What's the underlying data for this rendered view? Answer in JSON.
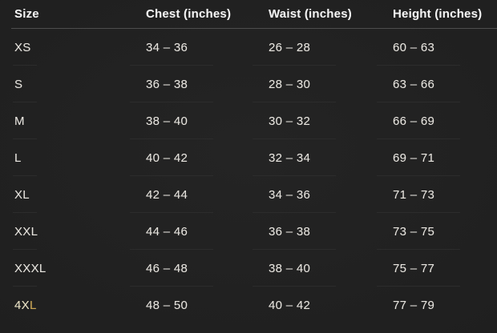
{
  "chart_data": {
    "type": "table",
    "columns": [
      "Size",
      "Chest (inches)",
      "Waist (inches)",
      "Height (inches)"
    ],
    "rows": [
      {
        "size": "XS",
        "chest": "34 – 36",
        "waist": "26 – 28",
        "height": "60 – 63"
      },
      {
        "size": "S",
        "chest": "36 – 38",
        "waist": "28 – 30",
        "height": "63 – 66"
      },
      {
        "size": "M",
        "chest": "38 – 40",
        "waist": "30 – 32",
        "height": "66 – 69"
      },
      {
        "size": "L",
        "chest": "40 – 42",
        "waist": "32 – 34",
        "height": "69 – 71"
      },
      {
        "size": "XL",
        "chest": "42 – 44",
        "waist": "34 – 36",
        "height": "71 – 73"
      },
      {
        "size": "XXL",
        "chest": "44 – 46",
        "waist": "36 – 38",
        "height": "73 – 75"
      },
      {
        "size": "XXXL",
        "chest": "46 – 48",
        "waist": "38 – 40",
        "height": "75 – 77"
      },
      {
        "size": "4XL",
        "chest": "48 – 50",
        "waist": "40 – 42",
        "height": "77 – 79",
        "size_parts": [
          {
            "text": "4X",
            "color": "#ece4c6"
          },
          {
            "text": "L",
            "color": "#cfa953"
          }
        ]
      }
    ],
    "layout": {
      "grid": "faint-row-separators",
      "legend": "none"
    }
  },
  "colors": {
    "background": "#1f1f1f",
    "header_text": "#f4f4f4",
    "cell_text": "#e9e6e0",
    "header_divider": "#4d4d4d",
    "row_divider": "#2c2c2c"
  }
}
